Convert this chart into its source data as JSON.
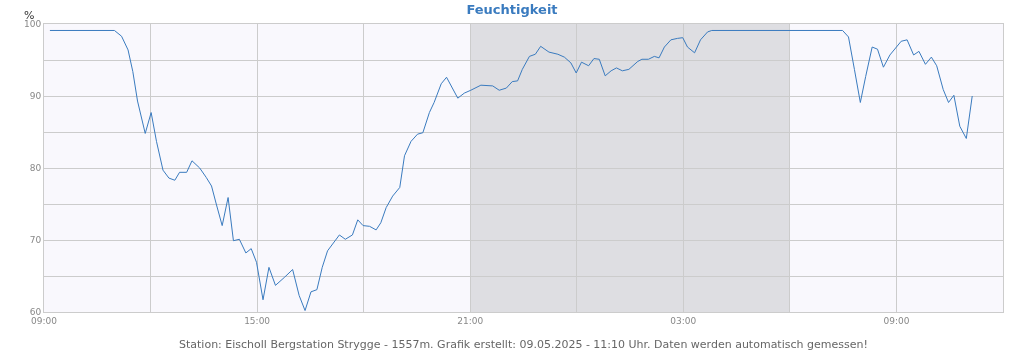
{
  "chart_data": {
    "type": "line",
    "title": "Feuchtigkeit",
    "ylabel": "%",
    "x": [
      "2025-05-08T09:10",
      "2025-05-08T10:59",
      "2025-05-08T11:11",
      "2025-05-08T11:22",
      "2025-05-08T11:30",
      "2025-05-08T11:38",
      "2025-05-08T11:51",
      "2025-05-08T12:01",
      "2025-05-08T12:10",
      "2025-05-08T12:21",
      "2025-05-08T12:31",
      "2025-05-08T12:41",
      "2025-05-08T12:49",
      "2025-05-08T13:01",
      "2025-05-08T13:10",
      "2025-05-08T13:23",
      "2025-05-08T13:34",
      "2025-05-08T13:43",
      "2025-05-08T13:51",
      "2025-05-08T14:01",
      "2025-05-08T14:11",
      "2025-05-08T14:20",
      "2025-05-08T14:30",
      "2025-05-08T14:41",
      "2025-05-08T14:50",
      "2025-05-08T14:59",
      "2025-05-08T15:10",
      "2025-05-08T15:20",
      "2025-05-08T15:31",
      "2025-05-08T15:46",
      "2025-05-08T16:00",
      "2025-05-08T16:11",
      "2025-05-08T16:21",
      "2025-05-08T16:31",
      "2025-05-08T16:41",
      "2025-05-08T16:50",
      "2025-05-08T16:59",
      "2025-05-08T17:19",
      "2025-05-08T17:29",
      "2025-05-08T17:41",
      "2025-05-08T17:50",
      "2025-05-08T17:59",
      "2025-05-08T18:10",
      "2025-05-08T18:21",
      "2025-05-08T18:29",
      "2025-05-08T18:38",
      "2025-05-08T18:49",
      "2025-05-08T19:01",
      "2025-05-08T19:09",
      "2025-05-08T19:20",
      "2025-05-08T19:31",
      "2025-05-08T19:40",
      "2025-05-08T19:51",
      "2025-05-08T19:59",
      "2025-05-08T20:11",
      "2025-05-08T20:20",
      "2025-05-08T20:39",
      "2025-05-08T20:50",
      "2025-05-08T21:01",
      "2025-05-08T21:18",
      "2025-05-08T21:38",
      "2025-05-08T21:49",
      "2025-05-08T22:01",
      "2025-05-08T22:11",
      "2025-05-08T22:20",
      "2025-05-08T22:28",
      "2025-05-08T22:40",
      "2025-05-08T22:50",
      "2025-05-08T22:59",
      "2025-05-08T23:13",
      "2025-05-08T23:28",
      "2025-05-08T23:39",
      "2025-05-08T23:50",
      "2025-05-08T23:59",
      "2025-05-09T00:08",
      "2025-05-09T00:20",
      "2025-05-09T00:29",
      "2025-05-09T00:38",
      "2025-05-09T00:48",
      "2025-05-09T00:58",
      "2025-05-09T01:07",
      "2025-05-09T01:17",
      "2025-05-09T01:28",
      "2025-05-09T01:43",
      "2025-05-09T01:50",
      "2025-05-09T02:01",
      "2025-05-09T02:11",
      "2025-05-09T02:19",
      "2025-05-09T02:28",
      "2025-05-09T02:39",
      "2025-05-09T02:50",
      "2025-05-09T02:59",
      "2025-05-09T03:07",
      "2025-05-09T03:19",
      "2025-05-09T03:29",
      "2025-05-09T03:41",
      "2025-05-09T03:48",
      "2025-05-09T07:29",
      "2025-05-09T07:39",
      "2025-05-09T07:49",
      "2025-05-09T07:59",
      "2025-05-09T08:08",
      "2025-05-09T08:19",
      "2025-05-09T08:28",
      "2025-05-09T08:38",
      "2025-05-09T08:49",
      "2025-05-09T09:08",
      "2025-05-09T09:18",
      "2025-05-09T09:29",
      "2025-05-09T09:38",
      "2025-05-09T09:49",
      "2025-05-09T09:59",
      "2025-05-09T10:08",
      "2025-05-09T10:19",
      "2025-05-09T10:28",
      "2025-05-09T10:37",
      "2025-05-09T10:47",
      "2025-05-09T10:58",
      "2025-05-09T11:08"
    ],
    "series": [
      {
        "color": "#3a7bbf",
        "values": [
          99.1,
          99.1,
          98.3,
          96.4,
          93.4,
          89.3,
          84.8,
          87.7,
          83.7,
          79.7,
          78.6,
          78.3,
          79.4,
          79.4,
          81.0,
          80.0,
          78.7,
          77.5,
          75.0,
          72.0,
          75.9,
          69.9,
          70.1,
          68.2,
          68.8,
          66.9,
          61.7,
          66.2,
          63.7,
          64.8,
          65.9,
          62.3,
          60.2,
          62.8,
          63.1,
          66.2,
          68.5,
          70.7,
          70.1,
          70.7,
          72.8,
          72.0,
          71.9,
          71.4,
          72.4,
          74.5,
          76.1,
          77.3,
          81.7,
          83.7,
          84.7,
          84.9,
          87.7,
          89.1,
          91.7,
          92.6,
          89.7,
          90.4,
          90.8,
          91.5,
          91.4,
          90.8,
          91.1,
          92.0,
          92.1,
          93.7,
          95.5,
          95.8,
          96.9,
          96.1,
          95.8,
          95.4,
          94.6,
          93.2,
          94.7,
          94.2,
          95.2,
          95.1,
          92.8,
          93.5,
          93.9,
          93.5,
          93.7,
          94.8,
          95.1,
          95.1,
          95.5,
          95.3,
          96.8,
          97.8,
          98.0,
          98.1,
          96.8,
          96.0,
          97.8,
          98.9,
          99.1,
          99.1,
          98.2,
          93.7,
          89.1,
          92.7,
          96.8,
          96.5,
          94.0,
          95.7,
          97.6,
          97.8,
          95.7,
          96.2,
          94.4,
          95.4,
          94.2,
          90.9,
          89.1,
          90.1,
          85.8,
          84.1,
          90.0
        ]
      }
    ],
    "xlim": [
      "2025-05-08T09:00",
      "2025-05-09T12:00"
    ],
    "xticks": [
      {
        "value": "2025-05-08T09:00",
        "label": "09:00"
      },
      {
        "value": "2025-05-08T12:00",
        "label": null
      },
      {
        "value": "2025-05-08T15:00",
        "label": "15:00"
      },
      {
        "value": "2025-05-08T18:00",
        "label": null
      },
      {
        "value": "2025-05-08T21:00",
        "label": "21:00"
      },
      {
        "value": "2025-05-09T00:00",
        "label": null
      },
      {
        "value": "2025-05-09T03:00",
        "label": "03:00"
      },
      {
        "value": "2025-05-09T06:00",
        "label": null
      },
      {
        "value": "2025-05-09T09:00",
        "label": "09:00"
      }
    ],
    "ylim": [
      60,
      100
    ],
    "yticks": [
      60,
      {
        "value": 65,
        "label": null
      },
      70,
      {
        "value": 75,
        "label": null
      },
      80,
      {
        "value": 85,
        "label": null
      },
      90,
      {
        "value": 95,
        "label": null
      },
      100
    ],
    "bands": [
      {
        "axis": "x",
        "from": "2025-05-08T21:00",
        "to": "2025-05-09T06:00",
        "color": "#dedee2"
      }
    ],
    "grid": true,
    "marker": "none",
    "line_style": "solid",
    "annotations": [
      "Station: Eischoll Bergstation Strygge - 1557m. Grafik erstellt: 09.05.2025 - 11:10 Uhr. Daten werden automatisch gemessen!"
    ]
  }
}
